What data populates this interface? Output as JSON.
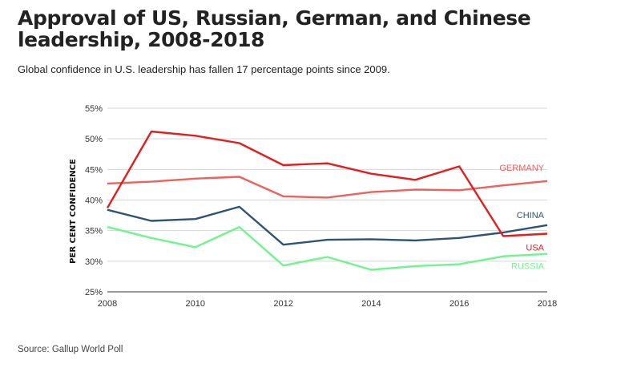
{
  "header": {
    "title": "Approval of US, Russian, German, and Chinese leadership, 2008-2018",
    "subtitle": "Global confidence in U.S. leadership has fallen 17 percentage points since 2009."
  },
  "footer": {
    "source": "Source: Gallup World Poll"
  },
  "chart_data": {
    "type": "line",
    "title": "Approval of US, Russian, German, and Chinese leadership, 2008-2018",
    "subtitle": "Global confidence in U.S. leadership has fallen 17 percentage points since 2009.",
    "xlabel": "",
    "ylabel": "PER CENT CONFIDENCE",
    "x": [
      2008,
      2009,
      2010,
      2011,
      2012,
      2013,
      2014,
      2015,
      2016,
      2017,
      2018
    ],
    "xticks": [
      "2008",
      "2010",
      "2012",
      "2014",
      "2016",
      "2018"
    ],
    "yticks": [
      "25%",
      "30%",
      "35%",
      "40%",
      "45%",
      "50%",
      "55%"
    ],
    "xlim": [
      2008,
      2018
    ],
    "ylim": [
      25,
      55
    ],
    "grid": true,
    "legend": "inline labels at right end of lines",
    "series": [
      {
        "name": "GERMANY",
        "color": "#f0605d",
        "values": [
          42.7,
          43.0,
          43.5,
          43.8,
          40.6,
          40.4,
          41.3,
          41.7,
          41.6,
          42.4,
          43.1
        ]
      },
      {
        "name": "CHINA",
        "color": "#2f5373",
        "values": [
          38.4,
          36.6,
          36.9,
          38.9,
          32.7,
          33.5,
          33.6,
          33.4,
          33.8,
          34.7,
          35.9
        ]
      },
      {
        "name": "USA",
        "color": "#e41e1e",
        "values": [
          38.7,
          51.2,
          50.5,
          49.3,
          45.7,
          46.0,
          44.3,
          43.3,
          45.5,
          34.1,
          34.5
        ]
      },
      {
        "name": "RUSSIA",
        "color": "#6ef58e",
        "values": [
          35.6,
          33.8,
          32.3,
          35.6,
          29.3,
          30.7,
          28.6,
          29.2,
          29.5,
          30.8,
          31.2
        ]
      }
    ]
  }
}
